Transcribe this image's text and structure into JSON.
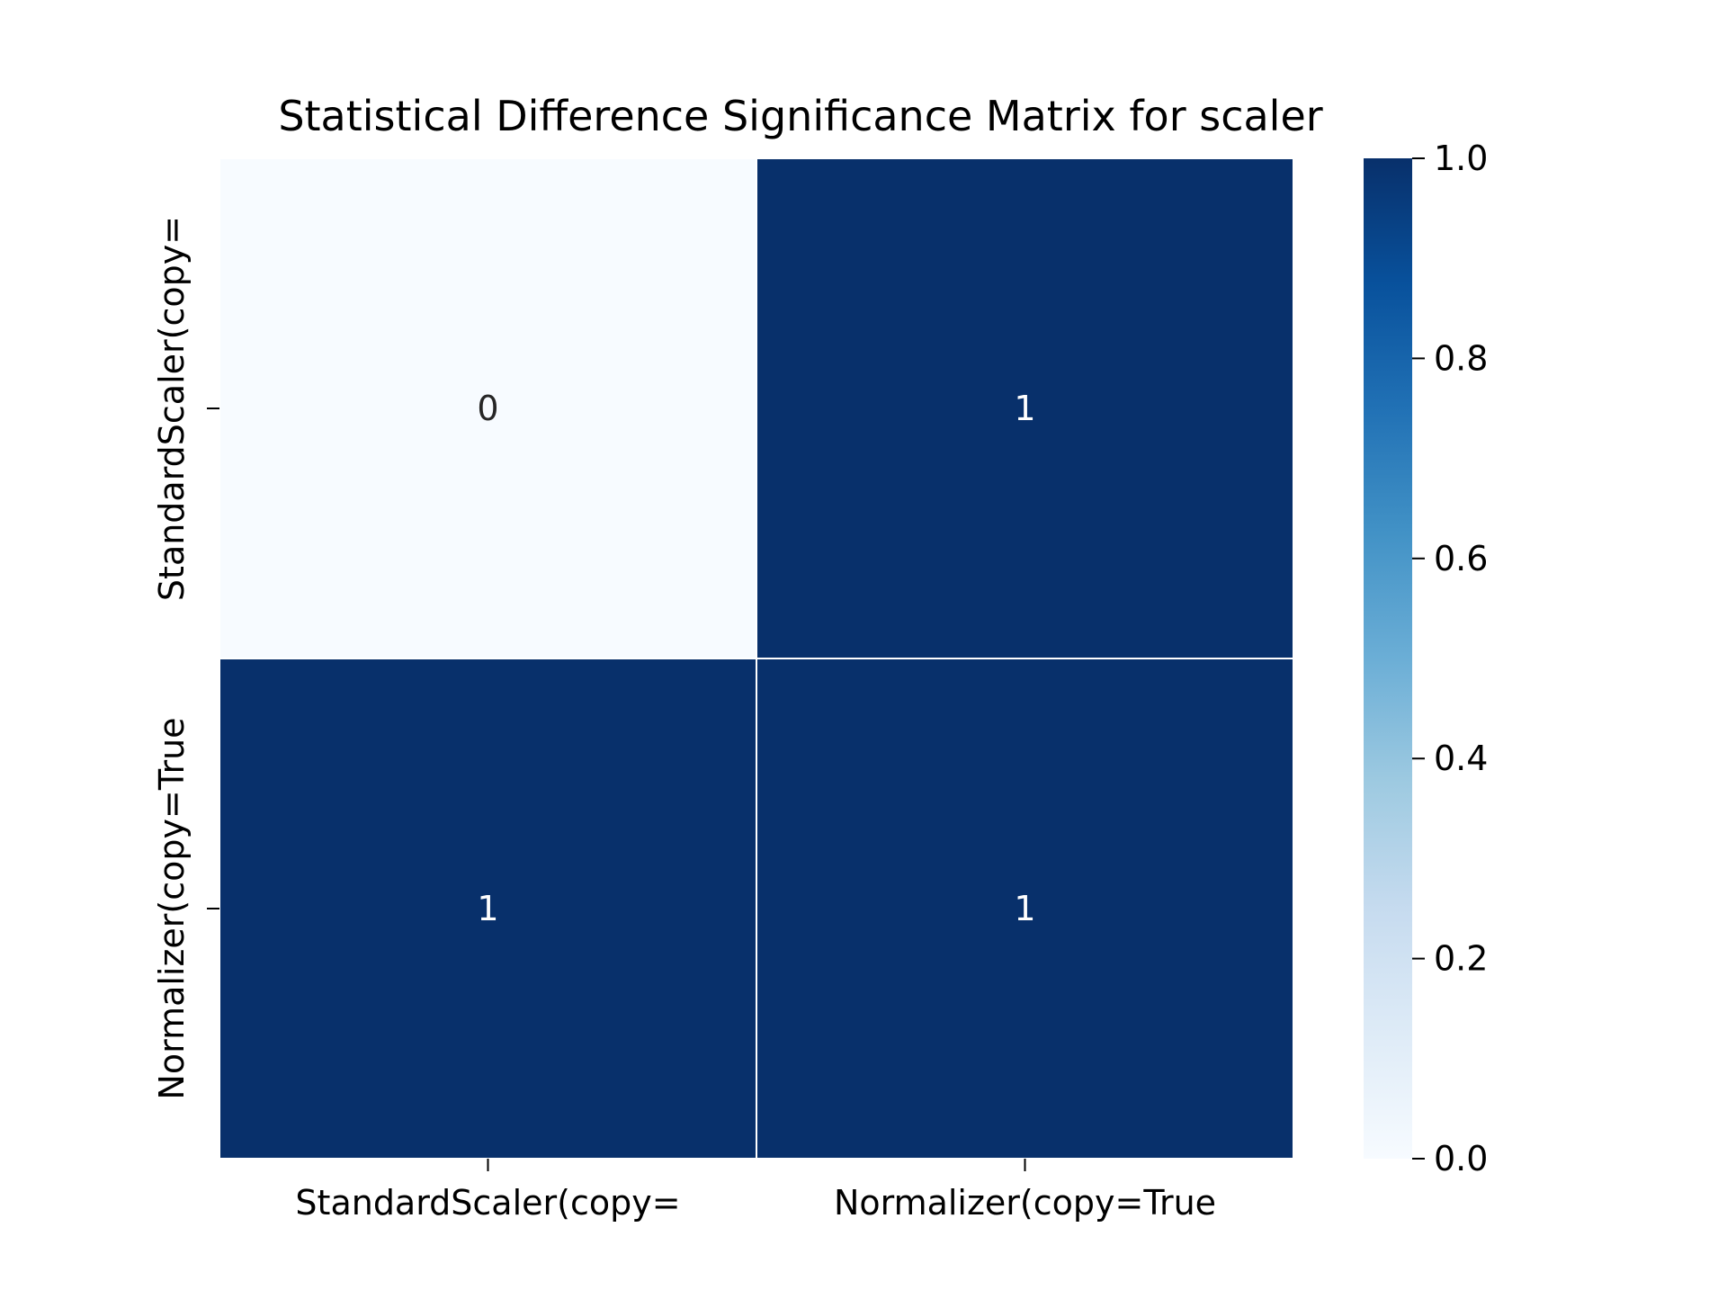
{
  "chart_data": {
    "type": "heatmap",
    "title": "Statistical Difference Significance Matrix for scaler",
    "xlabel": "",
    "ylabel": "",
    "x_categories": [
      "StandardScaler(copy=",
      "Normalizer(copy=True"
    ],
    "y_categories": [
      "StandardScaler(copy=",
      "Normalizer(copy=True"
    ],
    "values": [
      [
        0,
        1
      ],
      [
        1,
        1
      ]
    ],
    "annotations": [
      [
        "0",
        "1"
      ],
      [
        "1",
        "1"
      ]
    ],
    "colormap": "Blues",
    "colormap_stops": [
      "#f7fbff",
      "#deebf7",
      "#c6dbef",
      "#9ecae1",
      "#6baed6",
      "#4292c6",
      "#2171b5",
      "#08519c",
      "#08306b"
    ],
    "colorbar": {
      "range": [
        0.0,
        1.0
      ],
      "ticks": [
        0.0,
        0.2,
        0.4,
        0.6,
        0.8,
        1.0
      ],
      "tick_labels": [
        "0.0",
        "0.2",
        "0.4",
        "0.6",
        "0.8",
        "1.0"
      ]
    },
    "cell_line_color": "#ffffff",
    "grid": false
  }
}
